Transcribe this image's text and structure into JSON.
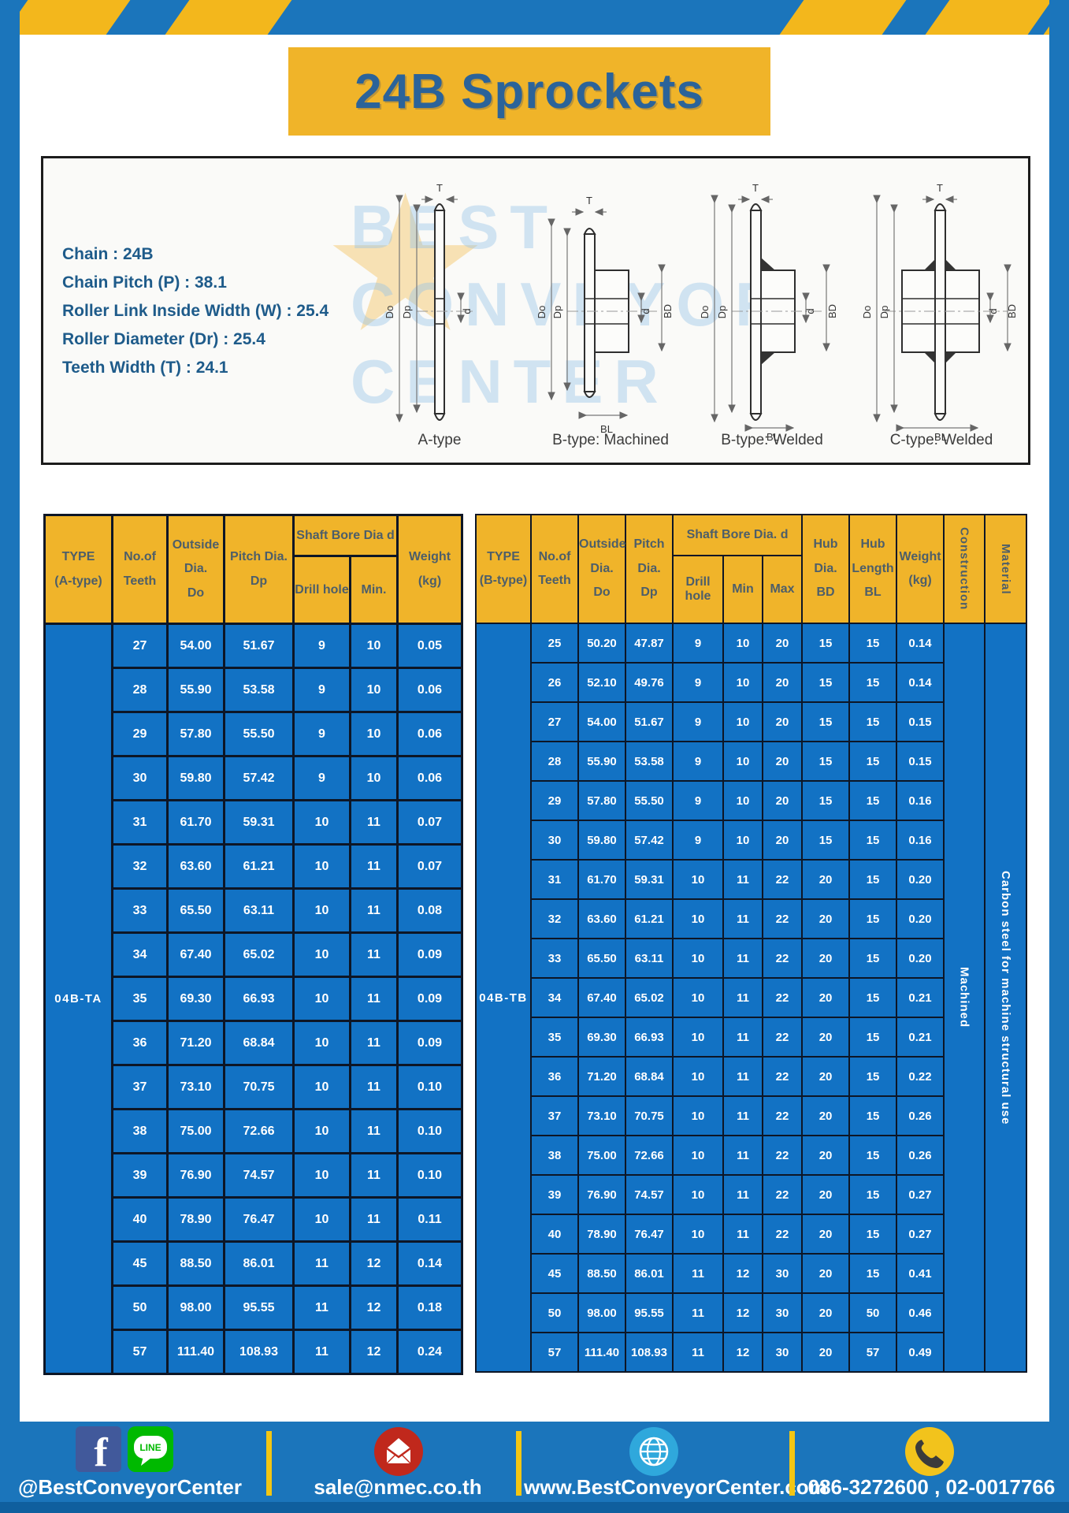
{
  "title": "24B Sprockets",
  "colors": {
    "frame_blue": "#1b75bb",
    "stripe_yellow": "#f3b71c",
    "banner_yellow": "#f0b429",
    "banner_text_blue": "#2b6399",
    "table_header_yellow": "#f0b42a",
    "table_cell_blue": "#1272c4",
    "table_border": "#0d1626",
    "spec_text_blue": "#1e5b8a",
    "footer_divider_yellow": "#f3c613"
  },
  "specs": [
    "Chain  : 24B",
    "Chain Pitch (P)  :  38.1",
    "Roller Link Inside Width (W)  :  25.4",
    "Roller Diameter (Dr)  : 25.4",
    "Teeth Width (T)  :  24.1"
  ],
  "diagram": {
    "watermark": [
      "BEST",
      "CONVEYOR",
      "CENTER"
    ],
    "watermark_star": "★",
    "dims": {
      "t": "T",
      "outer": "Do",
      "pitch": "Dp",
      "bore": "d",
      "hub_dia": "BD",
      "hub_len": "BL"
    },
    "captions": [
      "A-type",
      "B-type: Machined",
      "B-type: Welded",
      "C-type: Welded"
    ]
  },
  "table_a": {
    "h": {
      "type": [
        "TYPE",
        "(A-type)"
      ],
      "teeth": [
        "No.of",
        "Teeth"
      ],
      "outside": [
        "Outside",
        "Dia.",
        "Do"
      ],
      "pitch": [
        "Pitch Dia.",
        "Dp"
      ],
      "shaft": "Shaft Bore Dia d",
      "drill": "Drill hole",
      "min": "Min.",
      "weight": [
        "Weight",
        "(kg)"
      ]
    },
    "type_label": "04B-TA",
    "rows": [
      [
        "27",
        "54.00",
        "51.67",
        "9",
        "10",
        "0.05"
      ],
      [
        "28",
        "55.90",
        "53.58",
        "9",
        "10",
        "0.06"
      ],
      [
        "29",
        "57.80",
        "55.50",
        "9",
        "10",
        "0.06"
      ],
      [
        "30",
        "59.80",
        "57.42",
        "9",
        "10",
        "0.06"
      ],
      [
        "31",
        "61.70",
        "59.31",
        "10",
        "11",
        "0.07"
      ],
      [
        "32",
        "63.60",
        "61.21",
        "10",
        "11",
        "0.07"
      ],
      [
        "33",
        "65.50",
        "63.11",
        "10",
        "11",
        "0.08"
      ],
      [
        "34",
        "67.40",
        "65.02",
        "10",
        "11",
        "0.09"
      ],
      [
        "35",
        "69.30",
        "66.93",
        "10",
        "11",
        "0.09"
      ],
      [
        "36",
        "71.20",
        "68.84",
        "10",
        "11",
        "0.09"
      ],
      [
        "37",
        "73.10",
        "70.75",
        "10",
        "11",
        "0.10"
      ],
      [
        "38",
        "75.00",
        "72.66",
        "10",
        "11",
        "0.10"
      ],
      [
        "39",
        "76.90",
        "74.57",
        "10",
        "11",
        "0.10"
      ],
      [
        "40",
        "78.90",
        "76.47",
        "10",
        "11",
        "0.11"
      ],
      [
        "45",
        "88.50",
        "86.01",
        "11",
        "12",
        "0.14"
      ],
      [
        "50",
        "98.00",
        "95.55",
        "11",
        "12",
        "0.18"
      ],
      [
        "57",
        "111.40",
        "108.93",
        "11",
        "12",
        "0.24"
      ]
    ]
  },
  "table_b": {
    "h": {
      "type": [
        "TYPE",
        "(B-type)"
      ],
      "teeth": [
        "No.of",
        "Teeth"
      ],
      "outside": [
        "Outside",
        "Dia.",
        "Do"
      ],
      "pitch": [
        "Pitch",
        "Dia.",
        "Dp"
      ],
      "shaft": "Shaft Bore Dia.  d",
      "drill": "Drill hole",
      "min": "Min",
      "max": "Max",
      "hub_dia": [
        "Hub",
        "Dia.",
        "BD"
      ],
      "hub_len": [
        "Hub",
        "Length",
        "BL"
      ],
      "weight": [
        "Weight",
        "(kg)"
      ],
      "construction": "Construction",
      "material": "Material"
    },
    "type_label": "04B-TB",
    "construction": "Machined",
    "material": "Carbon steel for machine structural use",
    "rows": [
      [
        "25",
        "50.20",
        "47.87",
        "9",
        "10",
        "20",
        "15",
        "15",
        "0.14"
      ],
      [
        "26",
        "52.10",
        "49.76",
        "9",
        "10",
        "20",
        "15",
        "15",
        "0.14"
      ],
      [
        "27",
        "54.00",
        "51.67",
        "9",
        "10",
        "20",
        "15",
        "15",
        "0.15"
      ],
      [
        "28",
        "55.90",
        "53.58",
        "9",
        "10",
        "20",
        "15",
        "15",
        "0.15"
      ],
      [
        "29",
        "57.80",
        "55.50",
        "9",
        "10",
        "20",
        "15",
        "15",
        "0.16"
      ],
      [
        "30",
        "59.80",
        "57.42",
        "9",
        "10",
        "20",
        "15",
        "15",
        "0.16"
      ],
      [
        "31",
        "61.70",
        "59.31",
        "10",
        "11",
        "22",
        "20",
        "15",
        "0.20"
      ],
      [
        "32",
        "63.60",
        "61.21",
        "10",
        "11",
        "22",
        "20",
        "15",
        "0.20"
      ],
      [
        "33",
        "65.50",
        "63.11",
        "10",
        "11",
        "22",
        "20",
        "15",
        "0.20"
      ],
      [
        "34",
        "67.40",
        "65.02",
        "10",
        "11",
        "22",
        "20",
        "15",
        "0.21"
      ],
      [
        "35",
        "69.30",
        "66.93",
        "10",
        "11",
        "22",
        "20",
        "15",
        "0.21"
      ],
      [
        "36",
        "71.20",
        "68.84",
        "10",
        "11",
        "22",
        "20",
        "15",
        "0.22"
      ],
      [
        "37",
        "73.10",
        "70.75",
        "10",
        "11",
        "22",
        "20",
        "15",
        "0.26"
      ],
      [
        "38",
        "75.00",
        "72.66",
        "10",
        "11",
        "22",
        "20",
        "15",
        "0.26"
      ],
      [
        "39",
        "76.90",
        "74.57",
        "10",
        "11",
        "22",
        "20",
        "15",
        "0.27"
      ],
      [
        "40",
        "78.90",
        "76.47",
        "10",
        "11",
        "22",
        "20",
        "15",
        "0.27"
      ],
      [
        "45",
        "88.50",
        "86.01",
        "11",
        "12",
        "30",
        "20",
        "15",
        "0.41"
      ],
      [
        "50",
        "98.00",
        "95.55",
        "11",
        "12",
        "30",
        "20",
        "50",
        "0.46"
      ],
      [
        "57",
        "111.40",
        "108.93",
        "11",
        "12",
        "30",
        "20",
        "57",
        "0.49"
      ]
    ]
  },
  "footer": {
    "social": "@BestConveyorCenter",
    "line_label": "LINE",
    "email": "sale@nmec.co.th",
    "website": "www.BestConveyorCenter.com",
    "phone": "086-3272600 , 02-0017766"
  }
}
